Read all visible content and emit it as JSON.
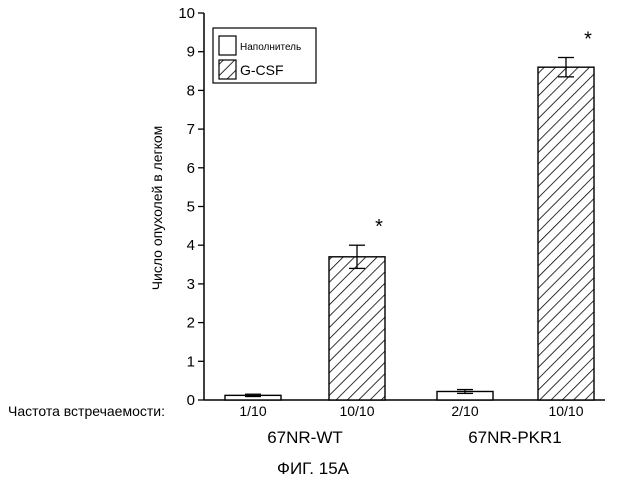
{
  "chart_data": {
    "type": "bar",
    "ylabel": "Число опухолей в легком",
    "ylim": [
      0,
      10
    ],
    "yticks": [
      0,
      1,
      2,
      3,
      4,
      5,
      6,
      7,
      8,
      9,
      10
    ],
    "grid": false,
    "legend_position": "top-left",
    "row_label": "Частота встречаемости:",
    "groups": [
      "67NR-WT",
      "67NR-PKR1"
    ],
    "series": [
      {
        "name": "Наполнитель",
        "fill": "plain",
        "values": [
          0.12,
          0.22
        ],
        "errors": [
          0.03,
          0.05
        ],
        "frequency": [
          "1/10",
          "2/10"
        ],
        "significant": [
          false,
          false
        ]
      },
      {
        "name": "G-CSF",
        "fill": "hatched",
        "values": [
          3.7,
          8.6
        ],
        "errors": [
          0.3,
          0.25
        ],
        "frequency": [
          "10/10",
          "10/10"
        ],
        "significant": [
          true,
          true
        ]
      }
    ],
    "significance_marker": "*",
    "colors": {
      "bar_fill": "#ffffff",
      "stroke": "#000000",
      "hatch": "#000000"
    }
  },
  "caption": "ФИГ. 15А"
}
